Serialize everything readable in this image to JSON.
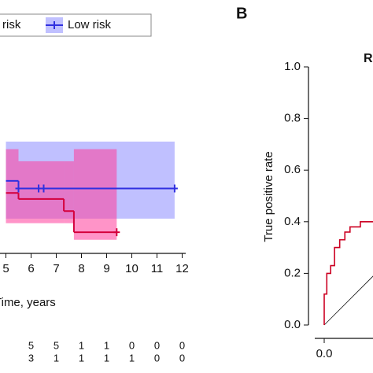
{
  "chart_data": [
    {
      "type": "step",
      "x_label": "Time, years",
      "xlim": [
        5,
        12
      ],
      "xticks": [
        5,
        6,
        7,
        8,
        9,
        10,
        11,
        12
      ],
      "ylim": [
        0,
        1
      ],
      "series": [
        {
          "name": "High risk",
          "color": "#d4003c",
          "band_color": "#ff3c9a",
          "x": [
            5,
            5.5,
            7.3,
            7.7,
            9.4
          ],
          "values": [
            0.4,
            0.36,
            0.28,
            0.14,
            0.14
          ],
          "lower": [
            0.2,
            0.2,
            0.2,
            0.09,
            0.09
          ],
          "upper": [
            0.69,
            0.61,
            0.61,
            0.69,
            0.69
          ],
          "censored_x": [
            9.4
          ]
        },
        {
          "name": "Low risk",
          "color": "#3030e0",
          "band_color": "#8c8cff",
          "x": [
            5,
            5.5,
            11.7
          ],
          "values": [
            0.48,
            0.43,
            0.43
          ],
          "lower": [
            0.23,
            0.23,
            0.23
          ],
          "upper": [
            0.74,
            0.74,
            0.74
          ],
          "censored_x": [
            5.5,
            6.3,
            6.5,
            11.7
          ]
        }
      ],
      "risk_table": {
        "x": [
          6,
          7,
          8,
          9,
          10,
          11,
          12
        ],
        "rows": [
          [
            5,
            5,
            1,
            1,
            0,
            0,
            0
          ],
          [
            3,
            1,
            1,
            1,
            1,
            0,
            0
          ]
        ]
      }
    },
    {
      "type": "roc",
      "panel": "B",
      "title": "ROC curve",
      "y_label": "True positive rate",
      "xlim": [
        0,
        1
      ],
      "ylim": [
        0,
        1
      ],
      "xticks": [
        {
          "value": 0,
          "label": "0.0"
        }
      ],
      "yticks": [
        {
          "value": 0,
          "label": "0.0"
        },
        0.2,
        0.4,
        0.6,
        0.8,
        {
          "value": 1,
          "label": "1.0"
        }
      ],
      "series": [
        {
          "color": "#cc0022",
          "x": [
            0,
            0,
            0.01,
            0.01,
            0.025,
            0.025,
            0.04,
            0.04,
            0.06,
            0.06,
            0.08,
            0.08,
            0.1,
            0.1,
            0.14,
            0.14,
            0.19
          ],
          "values": [
            0,
            0.12,
            0.12,
            0.2,
            0.2,
            0.23,
            0.23,
            0.3,
            0.3,
            0.33,
            0.33,
            0.36,
            0.36,
            0.38,
            0.38,
            0.4,
            0.4
          ]
        }
      ]
    }
  ]
}
